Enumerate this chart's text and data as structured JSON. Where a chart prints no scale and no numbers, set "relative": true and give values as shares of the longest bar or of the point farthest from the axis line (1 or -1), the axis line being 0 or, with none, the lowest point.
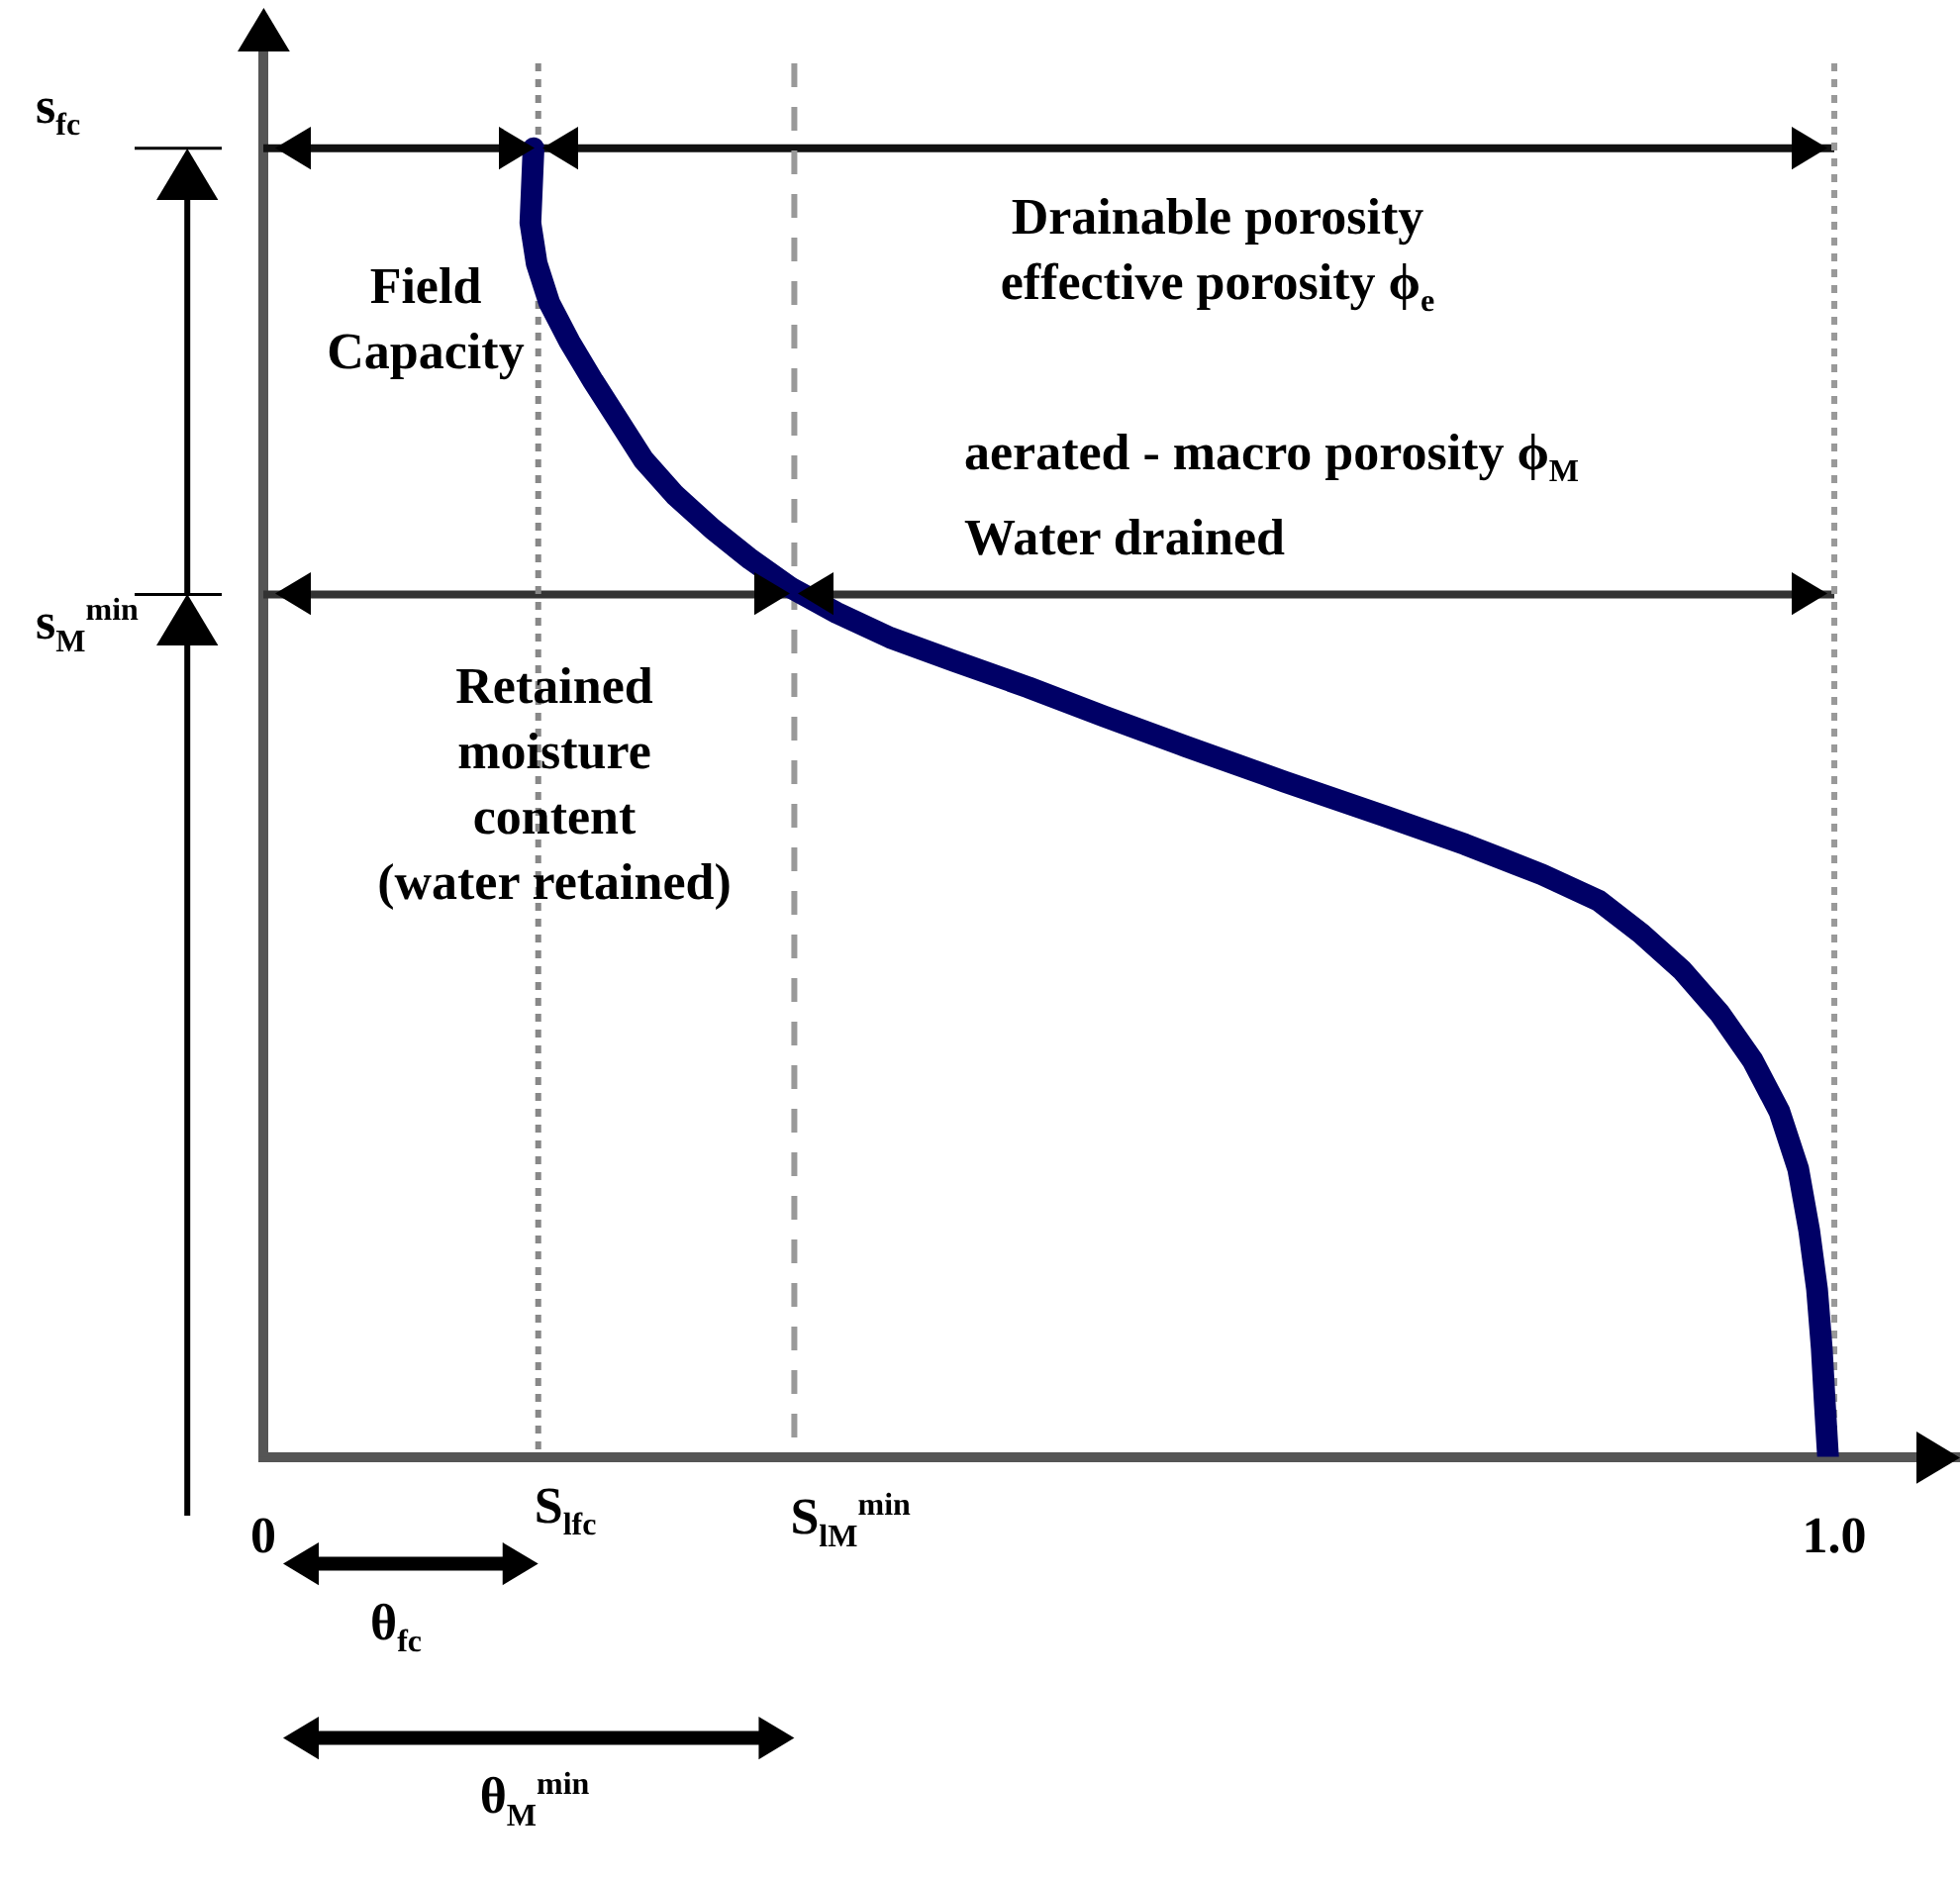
{
  "chart_data": {
    "type": "line",
    "relative": true,
    "xlim": [
      0,
      1.08
    ],
    "xticks": [
      {
        "value": 0,
        "label": "0"
      },
      {
        "value": 1,
        "label": "1.0"
      }
    ],
    "series": [
      {
        "color": "#000066",
        "x": [
          0.172,
          0.17,
          0.174,
          0.182,
          0.195,
          0.21,
          0.226,
          0.242,
          0.262,
          0.286,
          0.31,
          0.336,
          0.365,
          0.399,
          0.44,
          0.487,
          0.535,
          0.587,
          0.65,
          0.713,
          0.765,
          0.814,
          0.85,
          0.877,
          0.903,
          0.927,
          0.948,
          0.965,
          0.977,
          0.984,
          0.989,
          0.992,
          0.994,
          0.996
        ],
        "values": [
          1,
          0.943,
          0.912,
          0.882,
          0.852,
          0.822,
          0.792,
          0.762,
          0.735,
          0.709,
          0.686,
          0.664,
          0.645,
          0.626,
          0.608,
          0.588,
          0.566,
          0.543,
          0.516,
          0.49,
          0.468,
          0.445,
          0.425,
          0.4,
          0.372,
          0.339,
          0.303,
          0.264,
          0.22,
          0.173,
          0.128,
          0.083,
          0.04,
          0
        ]
      }
    ],
    "ref_lines": [
      {
        "axis": "y",
        "value": 1,
        "label": "s$_{fc}$",
        "color": "#111111"
      },
      {
        "axis": "y",
        "value": 0.659,
        "label": "s$_{M}$$^{min}$",
        "color": "#333333"
      },
      {
        "axis": "x",
        "value": 0.175,
        "label": "S$_{l}$$_{fc}$",
        "color": "#888888",
        "line_style": "dotted"
      },
      {
        "axis": "x",
        "value": 0.338,
        "label": "S$_{l}$$_{M}$$^{min}$",
        "color": "#999999",
        "line_style": "dashed"
      },
      {
        "axis": "x",
        "value": 1,
        "color": "#999999",
        "line_style": "dotted"
      }
    ],
    "annotations": [
      "Field\nCapacity",
      "Drainable porosity\neffective porosity ϕ$_{e}$",
      "aerated - macro porosity ϕ$_{M}$\nWater drained",
      "Retained\nmoisture\ncontent\n(water retained)",
      "θ$_{fc}$",
      "θ$_{M}$$^{min}$"
    ],
    "grid": false,
    "legend": false,
    "marker": "none",
    "line_style": "solid"
  }
}
